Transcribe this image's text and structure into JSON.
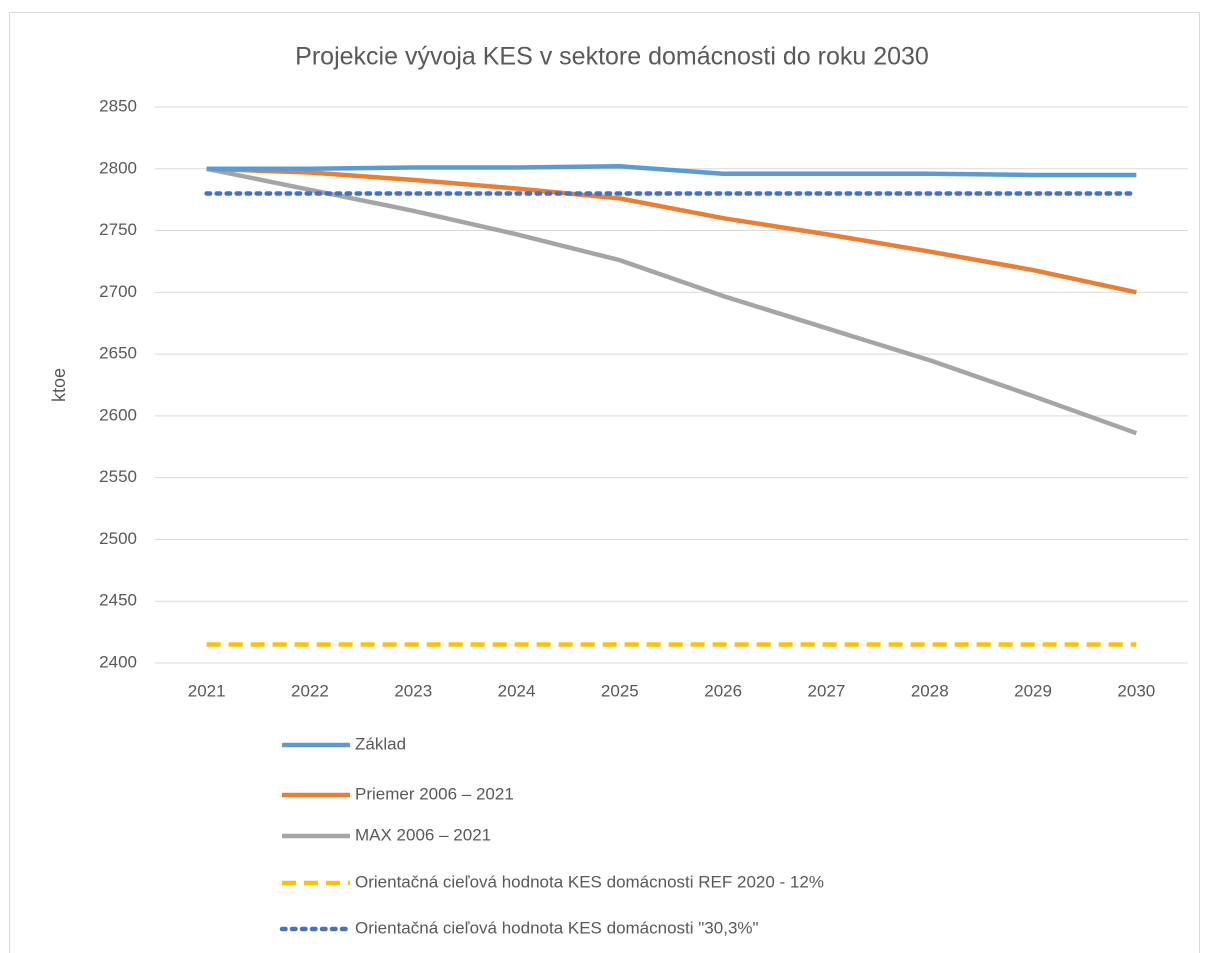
{
  "chart_data": {
    "type": "line",
    "title": "Projekcie vývoja KES v sektore domácnosti do roku 2030",
    "y_label": "ktoe",
    "categories": [
      "2021",
      "2022",
      "2023",
      "2024",
      "2025",
      "2026",
      "2027",
      "2028",
      "2029",
      "2030"
    ],
    "series": [
      {
        "name": "Základ",
        "color": "#5b9bd5",
        "dash": "solid",
        "values": [
          2800,
          2800,
          2801,
          2801,
          2802,
          2796,
          2796,
          2796,
          2795,
          2795
        ]
      },
      {
        "name": "Priemer 2006 – 2021",
        "color": "#ed7d31",
        "dash": "solid",
        "values": [
          2800,
          2797,
          2791,
          2784,
          2776,
          2760,
          2747,
          2733,
          2718,
          2700
        ]
      },
      {
        "name": "MAX 2006 – 2021",
        "color": "#a5a5a5",
        "dash": "solid",
        "values": [
          2800,
          2783,
          2766,
          2747,
          2726,
          2697,
          2671,
          2645,
          2616,
          2586
        ]
      },
      {
        "name": "Orientačná cieľová hodnota KES domácnosti REF 2020 - 12%",
        "color": "#ffc000",
        "dash": "dashed",
        "values": [
          2415,
          2415,
          2415,
          2415,
          2415,
          2415,
          2415,
          2415,
          2415,
          2415
        ]
      },
      {
        "name": "Orientačná cieľová hodnota KES domácnosti \"30,3%\"",
        "color": "#4472c4",
        "dash": "dotted",
        "values": [
          2780,
          2780,
          2780,
          2780,
          2780,
          2780,
          2780,
          2780,
          2780,
          2780
        ]
      }
    ],
    "ylim": [
      2400,
      2850
    ],
    "yticks": [
      2400,
      2450,
      2500,
      2550,
      2600,
      2650,
      2700,
      2750,
      2800,
      2850
    ],
    "grid": true,
    "legend": "bottom-left"
  }
}
